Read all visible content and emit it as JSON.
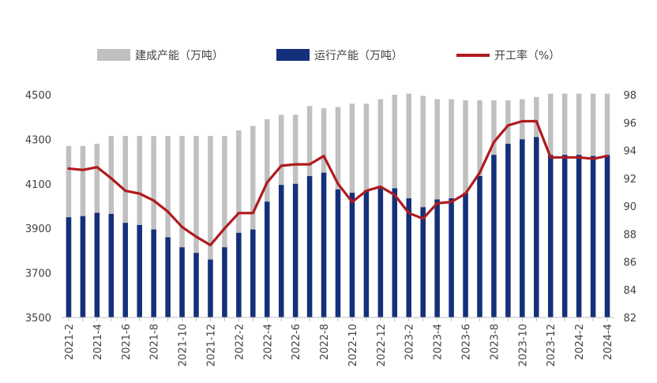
{
  "chart_data": {
    "type": "bar",
    "title": "",
    "xlabel": "",
    "ylabel": "",
    "categories": [
      "2021-2",
      "2021-3",
      "2021-4",
      "2021-5",
      "2021-6",
      "2021-7",
      "2021-8",
      "2021-9",
      "2021-10",
      "2021-11",
      "2021-12",
      "2022-1",
      "2022-2",
      "2022-3",
      "2022-4",
      "2022-5",
      "2022-6",
      "2022-7",
      "2022-8",
      "2022-9",
      "2022-10",
      "2022-11",
      "2022-12",
      "2023-1",
      "2023-2",
      "2023-3",
      "2023-4",
      "2023-5",
      "2023-6",
      "2023-7",
      "2023-8",
      "2023-9",
      "2023-10",
      "2023-11",
      "2023-12",
      "2024-1",
      "2024-2",
      "2024-3",
      "2024-4"
    ],
    "x_tick_labels": [
      "2021-2",
      "2021-4",
      "2021-6",
      "2021-8",
      "2021-10",
      "2021-12",
      "2022-2",
      "2022-4",
      "2022-6",
      "2022-8",
      "2022-10",
      "2022-12",
      "2023-2",
      "2023-4",
      "2023-6",
      "2023-8",
      "2023-10",
      "2023-12",
      "2024-2",
      "2024-4"
    ],
    "ylim_left": [
      3500,
      4500
    ],
    "yticks_left": [
      3500,
      3700,
      3900,
      4100,
      4300,
      4500
    ],
    "ylim_right": [
      82,
      98
    ],
    "yticks_right": [
      82,
      84,
      86,
      88,
      90,
      92,
      94,
      96,
      98
    ],
    "legend_position": "top",
    "grid": false,
    "series": [
      {
        "name": "建成产能（万吨）",
        "kind": "bar",
        "axis": "left",
        "color": "#c0c0c0",
        "values": [
          4270,
          4270,
          4280,
          4315,
          4315,
          4315,
          4315,
          4315,
          4315,
          4315,
          4315,
          4315,
          4340,
          4360,
          4390,
          4410,
          4410,
          4450,
          4440,
          4445,
          4460,
          4460,
          4480,
          4500,
          4505,
          4495,
          4480,
          4480,
          4475,
          4475,
          4475,
          4475,
          4480,
          4490,
          4505,
          4505,
          4505,
          4505,
          4505
        ]
      },
      {
        "name": "运行产能（万吨）",
        "kind": "bar",
        "axis": "left",
        "color": "#14307a",
        "values": [
          3950,
          3955,
          3970,
          3965,
          3925,
          3915,
          3895,
          3860,
          3815,
          3790,
          3760,
          3815,
          3880,
          3895,
          4020,
          4095,
          4100,
          4135,
          4150,
          4075,
          4060,
          4070,
          4080,
          4080,
          4035,
          3995,
          4030,
          4035,
          4060,
          4135,
          4230,
          4280,
          4300,
          4310,
          4230,
          4230,
          4230,
          4225,
          4230
        ]
      },
      {
        "name": "开工率（%）",
        "kind": "line",
        "axis": "right",
        "color": "#b01a1f",
        "values": [
          92.7,
          92.6,
          92.8,
          92.0,
          91.1,
          90.9,
          90.4,
          89.6,
          88.5,
          87.8,
          87.2,
          88.4,
          89.5,
          89.5,
          91.7,
          92.9,
          93.0,
          93.0,
          93.6,
          91.6,
          90.3,
          91.1,
          91.4,
          90.8,
          89.5,
          89.1,
          90.2,
          90.3,
          90.9,
          92.4,
          94.6,
          95.8,
          96.1,
          96.1,
          93.5,
          93.5,
          93.5,
          93.4,
          93.6
        ]
      }
    ]
  }
}
